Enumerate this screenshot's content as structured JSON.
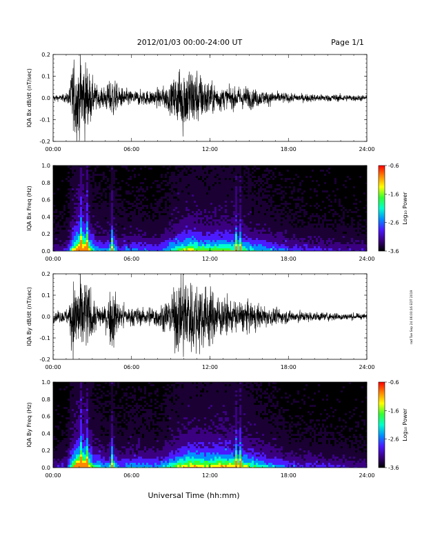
{
  "header": {
    "date_range": "2012/01/03  00:00-24:00 UT",
    "page": "Page 1/1"
  },
  "side_note": "rad Tue Sep 24 06:00:16 EDT 2019",
  "xlabel": "Universal Time (hh:mm)",
  "time_ticks": [
    "00:00",
    "06:00",
    "12:00",
    "18:00",
    "24:00"
  ],
  "chart_data": [
    {
      "type": "line",
      "id": "bx-dbdt",
      "ylabel": "IQA Bx dB/dt (nT/sec)",
      "ylim": [
        -0.2,
        0.2
      ],
      "yticks": [
        "-0.2",
        "-0.1",
        "0.0",
        "0.1",
        "0.2"
      ],
      "xlim_hours": [
        0,
        24
      ],
      "color": "#000000",
      "envelope": {
        "hours": [
          0,
          0.5,
          1.0,
          1.2,
          1.5,
          1.8,
          2.2,
          2.6,
          3.0,
          3.5,
          4.0,
          4.5,
          5.0,
          6.0,
          7.0,
          8.0,
          9.0,
          9.5,
          10.0,
          10.5,
          11.0,
          11.5,
          12.0,
          13.0,
          14.0,
          15.0,
          16.0,
          17.0,
          18.0,
          20.0,
          22.0,
          24.0
        ],
        "amplitude": [
          0.02,
          0.015,
          0.025,
          0.04,
          0.2,
          0.22,
          0.22,
          0.2,
          0.1,
          0.05,
          0.06,
          0.12,
          0.06,
          0.04,
          0.04,
          0.05,
          0.08,
          0.15,
          0.2,
          0.18,
          0.15,
          0.12,
          0.09,
          0.06,
          0.06,
          0.06,
          0.04,
          0.035,
          0.025,
          0.02,
          0.02,
          0.015
        ]
      }
    },
    {
      "type": "heatmap",
      "id": "bx-freq",
      "ylabel": "IQA Bx Freq (Hz)",
      "ylim": [
        0.0,
        1.0
      ],
      "yticks": [
        "0.0",
        "0.2",
        "0.4",
        "0.6",
        "0.8",
        "1.0"
      ],
      "xlim_hours": [
        0,
        24
      ],
      "colorbar": {
        "label": "Log₁₀ Power",
        "range": [
          -3.6,
          -0.6
        ],
        "ticks": [
          "-0.6",
          "-1.6",
          "-2.6",
          "-3.6"
        ]
      },
      "colors": [
        "#000000",
        "#1a0033",
        "#3a0080",
        "#4b1aff",
        "#0090ff",
        "#00ffcc",
        "#33ff33",
        "#ffff00",
        "#ff8800",
        "#ff0000"
      ],
      "activity": {
        "hours": [
          0,
          1.0,
          1.5,
          2.0,
          2.5,
          3.0,
          4.0,
          4.5,
          5.0,
          6.0,
          8.0,
          9.5,
          10.5,
          11.5,
          13.0,
          14.0,
          16.0,
          18.0,
          20.0,
          24.0
        ],
        "level": [
          0.25,
          0.3,
          0.7,
          0.95,
          0.85,
          0.5,
          0.4,
          0.55,
          0.35,
          0.4,
          0.35,
          0.6,
          0.7,
          0.6,
          0.65,
          0.6,
          0.45,
          0.35,
          0.3,
          0.25
        ]
      },
      "vertical_streaks_hours": [
        2.1,
        2.5,
        4.4,
        10.2,
        13.9,
        14.3
      ]
    },
    {
      "type": "line",
      "id": "by-dbdt",
      "ylabel": "IQA By dB/dt (nT/sec)",
      "ylim": [
        -0.2,
        0.2
      ],
      "yticks": [
        "-0.2",
        "-0.1",
        "0.0",
        "0.1",
        "0.2"
      ],
      "xlim_hours": [
        0,
        24
      ],
      "color": "#000000",
      "envelope": {
        "hours": [
          0,
          0.5,
          1.0,
          1.2,
          1.5,
          1.8,
          2.2,
          2.6,
          3.0,
          3.5,
          4.0,
          4.5,
          5.0,
          6.0,
          7.0,
          8.0,
          9.0,
          9.5,
          10.0,
          10.5,
          11.0,
          11.5,
          12.0,
          13.0,
          14.0,
          15.0,
          16.0,
          17.0,
          18.0,
          20.0,
          22.0,
          24.0
        ],
        "amplitude": [
          0.03,
          0.03,
          0.04,
          0.06,
          0.2,
          0.22,
          0.22,
          0.2,
          0.12,
          0.06,
          0.06,
          0.2,
          0.08,
          0.05,
          0.05,
          0.06,
          0.1,
          0.2,
          0.22,
          0.22,
          0.2,
          0.18,
          0.16,
          0.1,
          0.09,
          0.08,
          0.06,
          0.045,
          0.035,
          0.025,
          0.02,
          0.015
        ]
      }
    },
    {
      "type": "heatmap",
      "id": "by-freq",
      "ylabel": "IQA By Freq (Hz)",
      "ylim": [
        0.0,
        1.0
      ],
      "yticks": [
        "0.0",
        "0.2",
        "0.4",
        "0.6",
        "0.8",
        "1.0"
      ],
      "xlim_hours": [
        0,
        24
      ],
      "colorbar": {
        "label": "Log₁₀ Power",
        "range": [
          -3.6,
          -0.6
        ],
        "ticks": [
          "-0.6",
          "-1.6",
          "-2.6",
          "-3.6"
        ]
      },
      "colors": [
        "#000000",
        "#1a0033",
        "#3a0080",
        "#4b1aff",
        "#0090ff",
        "#00ffcc",
        "#33ff33",
        "#ffff00",
        "#ff8800",
        "#ff0000"
      ],
      "activity": {
        "hours": [
          0,
          1.0,
          1.5,
          2.0,
          2.5,
          3.0,
          4.0,
          4.5,
          5.0,
          6.0,
          8.0,
          9.5,
          10.5,
          11.5,
          13.0,
          14.0,
          16.0,
          18.0,
          20.0,
          24.0
        ],
        "level": [
          0.25,
          0.3,
          0.75,
          0.95,
          0.85,
          0.55,
          0.4,
          0.55,
          0.35,
          0.45,
          0.4,
          0.65,
          0.75,
          0.7,
          0.75,
          0.7,
          0.5,
          0.35,
          0.3,
          0.25
        ]
      },
      "vertical_streaks_hours": [
        2.1,
        2.5,
        4.4,
        10.2,
        13.9,
        14.3
      ]
    }
  ]
}
